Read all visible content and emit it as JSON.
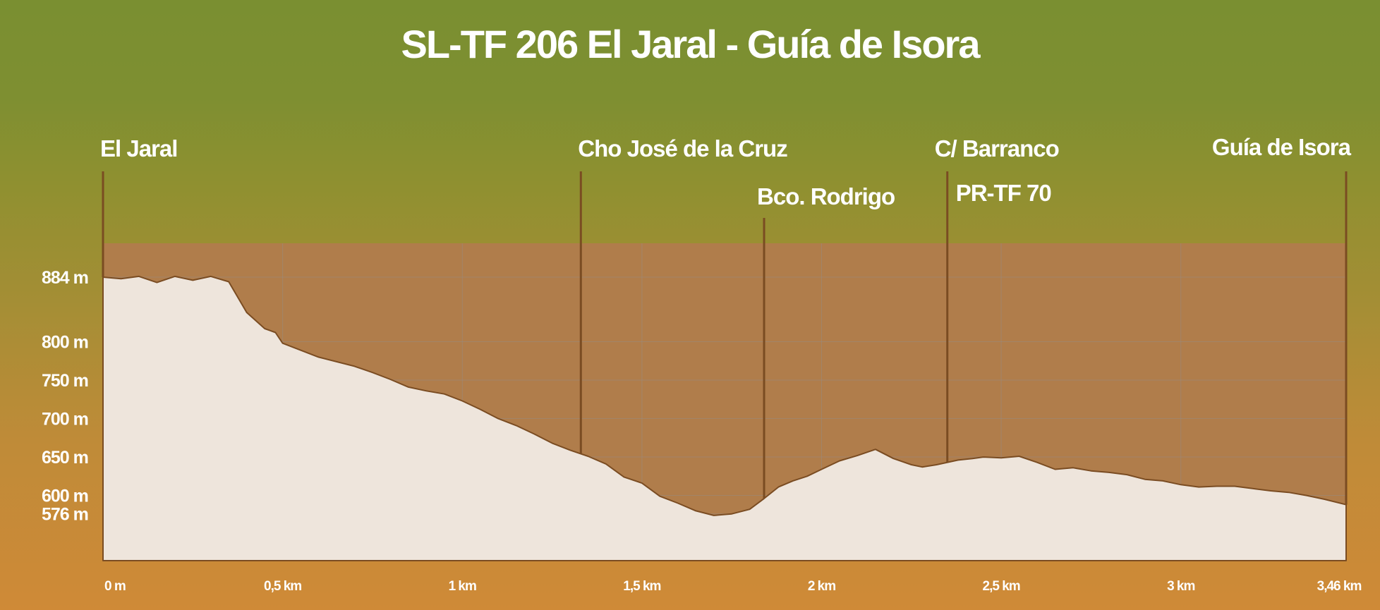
{
  "chart_data": {
    "type": "area",
    "title": "SL-TF 206 El Jaral - Guía de Isora",
    "xlabel": "",
    "ylabel": "",
    "xlim": [
      0,
      3.46
    ],
    "ylim": [
      550,
      910
    ],
    "grid": true,
    "x_ticks": [
      {
        "value": 0,
        "label": "0 m"
      },
      {
        "value": 0.5,
        "label": "0,5 km"
      },
      {
        "value": 1,
        "label": "1 km"
      },
      {
        "value": 1.5,
        "label": "1,5 km"
      },
      {
        "value": 2,
        "label": "2 km"
      },
      {
        "value": 2.5,
        "label": "2,5 km"
      },
      {
        "value": 3,
        "label": "3 km"
      },
      {
        "value": 3.46,
        "label": "3,46 km"
      }
    ],
    "y_ticks": [
      {
        "value": 884,
        "label": "884 m"
      },
      {
        "value": 800,
        "label": "800 m"
      },
      {
        "value": 750,
        "label": "750 m"
      },
      {
        "value": 700,
        "label": "700 m"
      },
      {
        "value": 650,
        "label": "650 m"
      },
      {
        "value": 600,
        "label": "600 m"
      },
      {
        "value": 576,
        "label": "576 m"
      }
    ],
    "series": [
      {
        "x": [
          0,
          0.05,
          0.1,
          0.15,
          0.2,
          0.25,
          0.3,
          0.35,
          0.4,
          0.45,
          0.48,
          0.5,
          0.6,
          0.7,
          0.75,
          0.8,
          0.85,
          0.9,
          0.95,
          1.0,
          1.05,
          1.1,
          1.15,
          1.2,
          1.25,
          1.3,
          1.35,
          1.4,
          1.45,
          1.5,
          1.55,
          1.6,
          1.65,
          1.7,
          1.75,
          1.8,
          1.84,
          1.88,
          1.92,
          1.96,
          2.0,
          2.05,
          2.1,
          2.15,
          2.2,
          2.25,
          2.28,
          2.32,
          2.38,
          2.42,
          2.45,
          2.5,
          2.55,
          2.6,
          2.65,
          2.7,
          2.75,
          2.8,
          2.85,
          2.9,
          2.95,
          3.0,
          3.05,
          3.1,
          3.15,
          3.2,
          3.25,
          3.3,
          3.35,
          3.4,
          3.46
        ],
        "y": [
          884,
          882,
          885,
          877,
          885,
          880,
          885,
          878,
          838,
          817,
          812,
          798,
          780,
          768,
          760,
          751,
          741,
          736,
          732,
          723,
          712,
          700,
          691,
          680,
          668,
          659,
          651,
          641,
          624,
          616,
          599,
          590,
          580,
          574,
          576,
          582,
          596,
          611,
          619,
          625,
          634,
          645,
          652,
          660,
          648,
          640,
          637,
          640,
          646,
          648,
          650,
          649,
          651,
          643,
          634,
          636,
          632,
          630,
          627,
          621,
          619,
          614,
          611,
          612,
          612,
          609,
          606,
          604,
          600,
          595,
          588
        ]
      }
    ],
    "annotations": [
      {
        "x": 0,
        "lines": [
          "El Jaral"
        ]
      },
      {
        "x": 1.33,
        "lines": [
          "Cho José de la Cruz"
        ]
      },
      {
        "x": 1.84,
        "lines": [
          "Bco. Rodrigo"
        ]
      },
      {
        "x": 2.35,
        "lines": [
          "C/ Barranco",
          "PR-TF 70"
        ]
      },
      {
        "x": 3.46,
        "lines": [
          "Guía de Isora"
        ]
      }
    ],
    "colors": {
      "profile_fill": "#eee5dc",
      "sky_fill": "#b07d4b",
      "profile_stroke": "#7a4c22",
      "text": "#ffffff"
    }
  }
}
